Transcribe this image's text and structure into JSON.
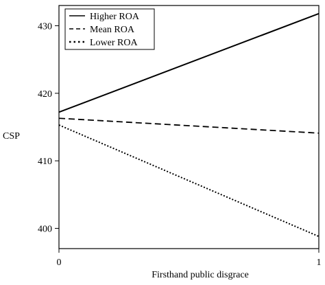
{
  "chart_data": {
    "type": "line",
    "title": "",
    "xlabel": "Firsthand public disgrace",
    "ylabel": "CSP",
    "xlim": [
      0,
      1
    ],
    "ylim": [
      397,
      433
    ],
    "x_ticks": [
      0,
      1
    ],
    "y_ticks": [
      400,
      410,
      420,
      430
    ],
    "grid": false,
    "legend_position": "top-left",
    "series": [
      {
        "name": "Higher ROA",
        "style": "solid",
        "x": [
          0,
          1
        ],
        "values": [
          417.2,
          431.8
        ]
      },
      {
        "name": "Mean ROA",
        "style": "dashed",
        "x": [
          0,
          1
        ],
        "values": [
          416.3,
          414.1
        ]
      },
      {
        "name": "Lower ROA",
        "style": "dotted",
        "x": [
          0,
          1
        ],
        "values": [
          415.3,
          398.8
        ]
      }
    ]
  }
}
